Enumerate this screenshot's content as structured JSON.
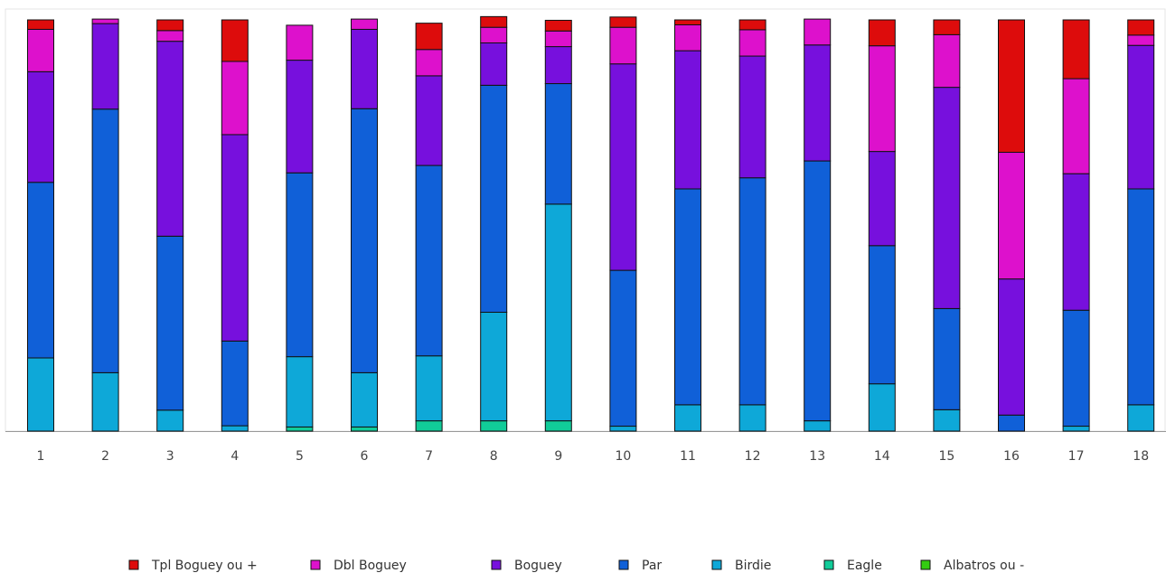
{
  "chart_data": {
    "type": "bar",
    "stacked": true,
    "percent": true,
    "title": "",
    "xlabel": "",
    "ylabel": "",
    "ylim": [
      0,
      100
    ],
    "grid": false,
    "legend_position": "bottom",
    "categories": [
      "1",
      "2",
      "3",
      "4",
      "5",
      "6",
      "7",
      "8",
      "9",
      "10",
      "11",
      "12",
      "13",
      "14",
      "15",
      "16",
      "17",
      "18"
    ],
    "series": [
      {
        "name": "Albatros ou -",
        "color": "#33cc11",
        "values": [
          0,
          0,
          0,
          0,
          0,
          0,
          0,
          0,
          0,
          0,
          0,
          0,
          0,
          0,
          0,
          0,
          0,
          0
        ]
      },
      {
        "name": "Eagle",
        "color": "#11cc99",
        "values": [
          0,
          0,
          0,
          0,
          1,
          1,
          2.5,
          2.5,
          2.5,
          0,
          0,
          0,
          0,
          0,
          0,
          0,
          0,
          0
        ]
      },
      {
        "name": "Birdie",
        "color": "#0ea8d8",
        "values": [
          17.8,
          14.2,
          5.1,
          1.3,
          17.1,
          13.2,
          15.8,
          26.4,
          52.7,
          1.2,
          6.4,
          6.4,
          2.5,
          11.5,
          5.2,
          0,
          1.2,
          6.4
        ]
      },
      {
        "name": "Par",
        "color": "#1060d8",
        "values": [
          42.7,
          64.1,
          42.3,
          20.6,
          44.7,
          64.2,
          46.3,
          55.2,
          29.3,
          37.9,
          52.5,
          55.2,
          63.2,
          33.6,
          24.6,
          3.9,
          28.2,
          52.5
        ]
      },
      {
        "name": "Boguey",
        "color": "#7710dd",
        "values": [
          26.9,
          20.8,
          47.4,
          50.2,
          27.4,
          19.3,
          21.8,
          10.3,
          9.0,
          50.2,
          33.6,
          29.6,
          28.2,
          22.9,
          53.8,
          33.1,
          33.2,
          34.9
        ]
      },
      {
        "name": "Dbl Boguey",
        "color": "#dd11cc",
        "values": [
          10.3,
          1.1,
          2.6,
          17.8,
          8.5,
          2.5,
          6.4,
          3.8,
          3.8,
          8.9,
          6.3,
          6.4,
          6.3,
          25.7,
          12.8,
          30.8,
          23.1,
          2.5
        ]
      },
      {
        "name": "Tpl Boguey ou +",
        "color": "#dd0c0c",
        "values": [
          2.3,
          0,
          2.6,
          10.1,
          0,
          0,
          6.4,
          2.6,
          2.6,
          2.5,
          1.2,
          2.4,
          0,
          6.3,
          3.6,
          32.2,
          14.3,
          3.7
        ]
      }
    ]
  }
}
